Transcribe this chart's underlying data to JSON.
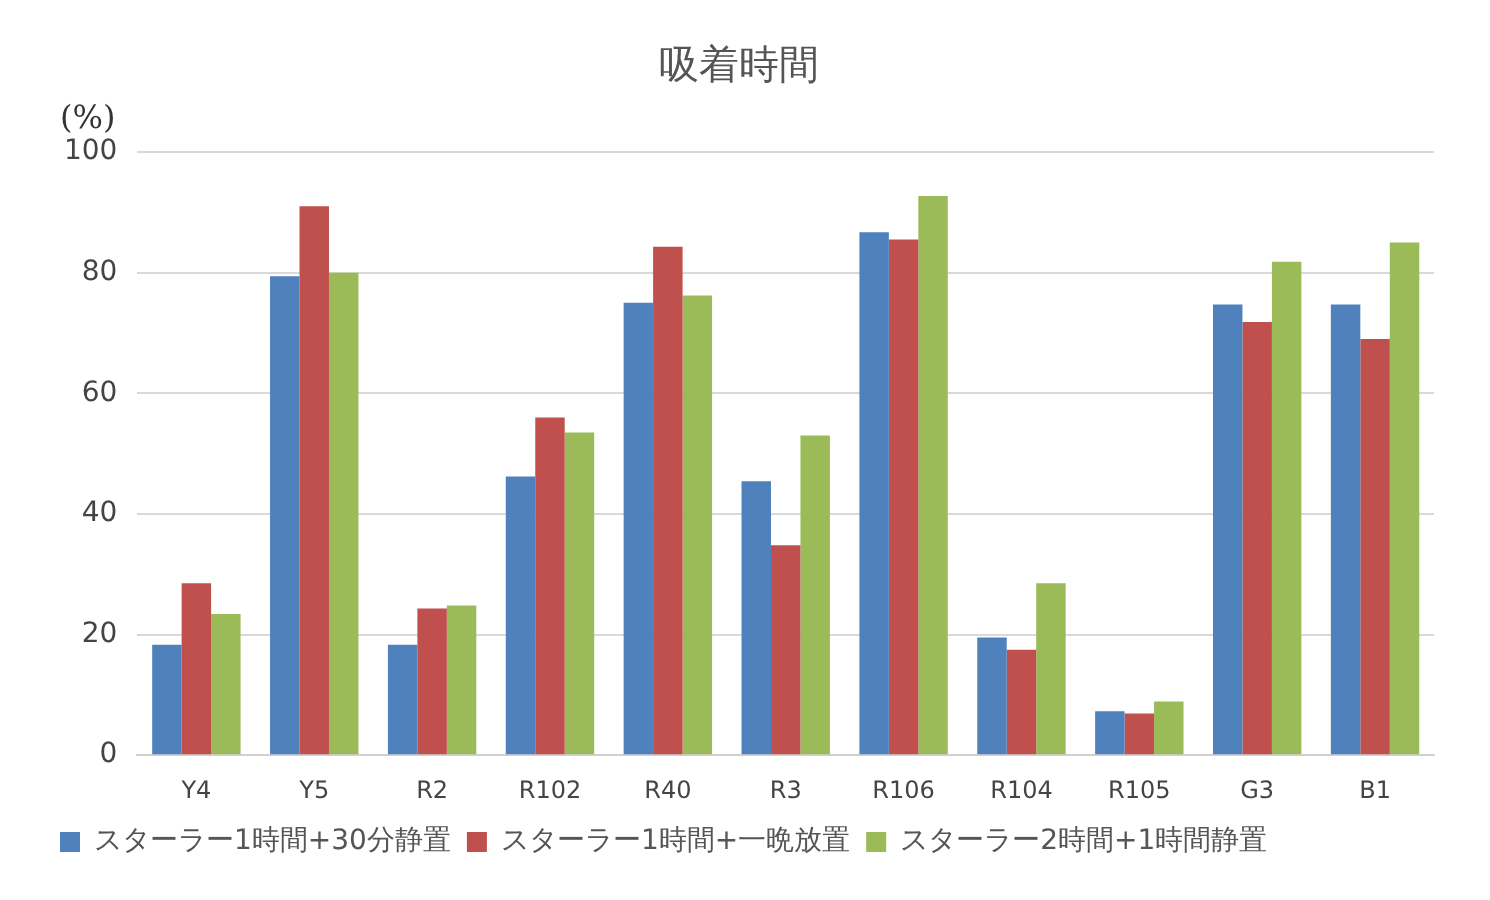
{
  "chart_data": {
    "type": "bar",
    "title": "吸着時間",
    "ylabel": "(%)",
    "categories": [
      "Y4",
      "Y5",
      "R2",
      "R102",
      "R40",
      "R3",
      "R106",
      "R104",
      "R105",
      "G3",
      "B1"
    ],
    "series": [
      {
        "name": "スターラー1時間+30分静置",
        "color": "#4f81bd",
        "values": [
          18.3,
          79.4,
          18.3,
          46.2,
          75,
          45.4,
          86.7,
          19.5,
          7.3,
          74.7,
          74.7
        ]
      },
      {
        "name": "スターラー1時間+一晩放置",
        "color": "#c0504d",
        "values": [
          28.5,
          91,
          24.3,
          56,
          84.3,
          34.8,
          85.5,
          17.5,
          6.9,
          71.8,
          69
        ]
      },
      {
        "name": "スターラー2時間+1時間静置",
        "color": "#9bbb59",
        "values": [
          23.4,
          80,
          24.8,
          53.5,
          76.2,
          53,
          92.7,
          28.5,
          8.9,
          81.8,
          85
        ]
      }
    ],
    "ylim": [
      0,
      100
    ],
    "yticks": [
      0,
      20,
      40,
      60,
      80,
      100
    ],
    "grid": "y",
    "legend": "bottom"
  }
}
